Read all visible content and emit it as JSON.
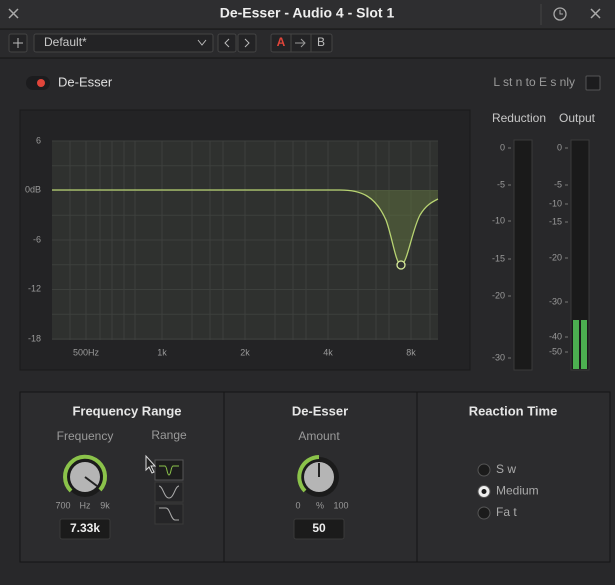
{
  "window": {
    "title": "De-Esser - Audio 4 -  Slot 1"
  },
  "toolbar": {
    "preset": "Default*",
    "compare_a": "A",
    "compare_b": "B"
  },
  "header": {
    "plugin_name": "De-Esser",
    "listen_label": "L st n to E s nly"
  },
  "graph": {
    "y_labels": [
      "6",
      "0dB",
      "-6",
      "-12",
      "-18"
    ],
    "x_labels": [
      "500Hz",
      "1k",
      "2k",
      "4k",
      "8k"
    ]
  },
  "meters": {
    "reduction": {
      "label": "Reduction",
      "scale": [
        "0",
        "-5",
        "-10",
        "-15",
        "-20",
        "-30"
      ]
    },
    "output": {
      "label": "Output",
      "scale": [
        "0",
        "-5",
        "-10",
        "-15",
        "-20",
        "-30",
        "-40",
        "-50"
      ]
    }
  },
  "panels": {
    "frequency_range": {
      "title": "Frequency Range",
      "frequency_label": "Frequency",
      "range_label": "Range",
      "min": "700",
      "unit": "Hz",
      "max": "9k",
      "value": "7.33k"
    },
    "de_esser": {
      "title": "De-Esser",
      "amount_label": "Amount",
      "min": "0",
      "unit": "%",
      "max": "100",
      "value": "50"
    },
    "reaction_time": {
      "title": "Reaction Time",
      "options": [
        "S w",
        "Medium",
        "Fa t"
      ]
    }
  }
}
